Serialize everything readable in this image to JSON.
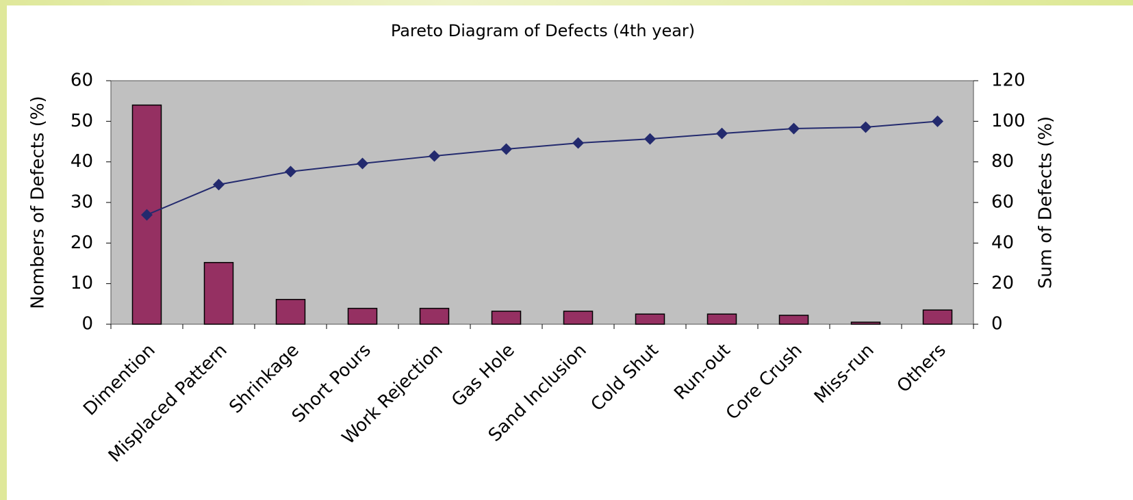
{
  "chart_data": {
    "type": "bar",
    "title": "Pareto Diagram of Defects (4th year)",
    "y_label": "Nombers of Defects (%)",
    "y2_label": "Sum of Defects (%)",
    "categories": [
      "Dimention",
      "Misplaced Pattern",
      "Shrinkage",
      "Short Pours",
      "Work Rejection",
      "Gas Hole",
      "Sand Inclusion",
      "Cold Shut",
      "Run-out",
      "Core Crush",
      "Miss-run",
      "Others"
    ],
    "series": [
      {
        "type": "bar",
        "color": "#953062",
        "values": [
          54.0,
          15.2,
          6.1,
          3.9,
          3.9,
          3.2,
          3.2,
          2.5,
          2.5,
          2.2,
          0.5,
          3.5
        ]
      },
      {
        "type": "line",
        "axis": "y2",
        "color": "#232a6e",
        "values": [
          53.9,
          68.8,
          75.2,
          79.2,
          82.9,
          86.3,
          89.3,
          91.3,
          94.0,
          96.4,
          97.1,
          100
        ]
      }
    ],
    "ylim": [
      0,
      60
    ],
    "yticks": [
      0,
      10,
      20,
      30,
      40,
      50,
      60
    ],
    "y2lim": [
      0,
      120
    ],
    "y2ticks": [
      0,
      20,
      40,
      60,
      80,
      100,
      120
    ],
    "plot_background": "#c0c0c0"
  }
}
